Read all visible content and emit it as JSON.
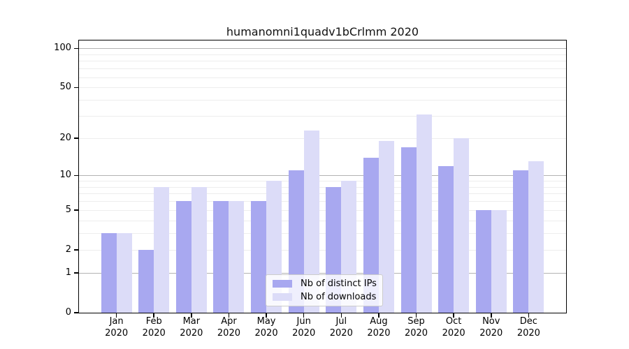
{
  "chart_data": {
    "type": "bar",
    "title": "humanomni1quadv1bCrlmm 2020",
    "categories": [
      "Jan",
      "Feb",
      "Mar",
      "Apr",
      "May",
      "Jun",
      "Jul",
      "Aug",
      "Sep",
      "Oct",
      "Nov",
      "Dec"
    ],
    "year_label": "2020",
    "series": [
      {
        "name": "Nb of distinct IPs",
        "key": "distinct-ips",
        "color": "#a8a8f0",
        "values": [
          3,
          2,
          6,
          6,
          6,
          11,
          8,
          14,
          17,
          12,
          5,
          11
        ]
      },
      {
        "name": "Nb of downloads",
        "key": "downloads",
        "color": "#dcdcf8",
        "values": [
          3,
          8,
          8,
          6,
          9,
          23,
          9,
          19,
          31,
          20,
          5,
          13
        ]
      }
    ],
    "xlabel": "",
    "ylabel": "",
    "yscale": "log1p",
    "ylim": [
      0,
      115
    ],
    "yticks": [
      0,
      1,
      2,
      5,
      10,
      20,
      50,
      100
    ],
    "major_gridlines": [
      1,
      10,
      100
    ],
    "minor_gridlines": [
      2,
      3,
      4,
      5,
      6,
      7,
      8,
      9,
      20,
      30,
      40,
      50,
      60,
      70,
      80,
      90
    ],
    "grid": "horizontal",
    "legend_position": "inside lower-center",
    "colors": {
      "major_grid": "#b3b3b3",
      "minor_grid": "#ededed",
      "axis": "#000000",
      "text": "#111111",
      "background": "#ffffff"
    }
  }
}
